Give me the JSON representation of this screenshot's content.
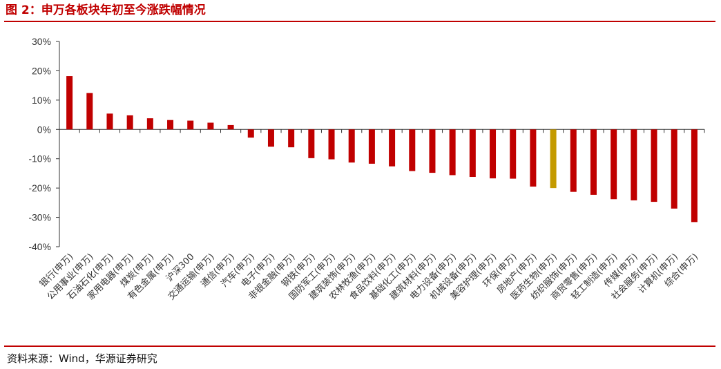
{
  "figure": {
    "title": "图 2：申万各板块年初至今涨跌幅情况",
    "source": "资料来源：Wind，华源证券研究"
  },
  "colors": {
    "bar": "#c00000",
    "highlight": "#c49a00",
    "axis": "#333333"
  },
  "chart_data": {
    "type": "bar",
    "title": "",
    "xlabel": "",
    "ylabel": "",
    "ylim": [
      -40,
      30
    ],
    "yticks": [
      30,
      20,
      10,
      0,
      -10,
      -20,
      -30,
      -40
    ],
    "ytick_format": "percent",
    "grid": false,
    "legend": "none",
    "highlight_category": "医药生物(申万)",
    "categories": [
      "银行(申万)",
      "公用事业(申万)",
      "石油石化(申万)",
      "家用电器(申万)",
      "煤炭(申万)",
      "有色金属(申万)",
      "沪深300",
      "交通运输(申万)",
      "通信(申万)",
      "汽车(申万)",
      "电子(申万)",
      "非银金融(申万)",
      "钢铁(申万)",
      "国防军工(申万)",
      "建筑装饰(申万)",
      "农林牧渔(申万)",
      "食品饮料(申万)",
      "基础化工(申万)",
      "建筑材料(申万)",
      "电力设备(申万)",
      "机械设备(申万)",
      "美容护理(申万)",
      "环保(申万)",
      "房地产(申万)",
      "医药生物(申万)",
      "纺织服饰(申万)",
      "商贸零售(申万)",
      "轻工制造(申万)",
      "传媒(申万)",
      "社会服务(申万)",
      "计算机(申万)",
      "综合(申万)"
    ],
    "values": [
      18.2,
      12.4,
      5.4,
      4.8,
      3.8,
      3.2,
      3.0,
      2.3,
      1.5,
      -2.8,
      -5.9,
      -6.1,
      -9.8,
      -10.2,
      -11.3,
      -11.7,
      -12.6,
      -14.2,
      -14.8,
      -15.6,
      -16.2,
      -16.7,
      -16.8,
      -19.5,
      -20.0,
      -21.3,
      -22.3,
      -23.8,
      -24.2,
      -24.7,
      -27.0,
      -31.6
    ]
  }
}
